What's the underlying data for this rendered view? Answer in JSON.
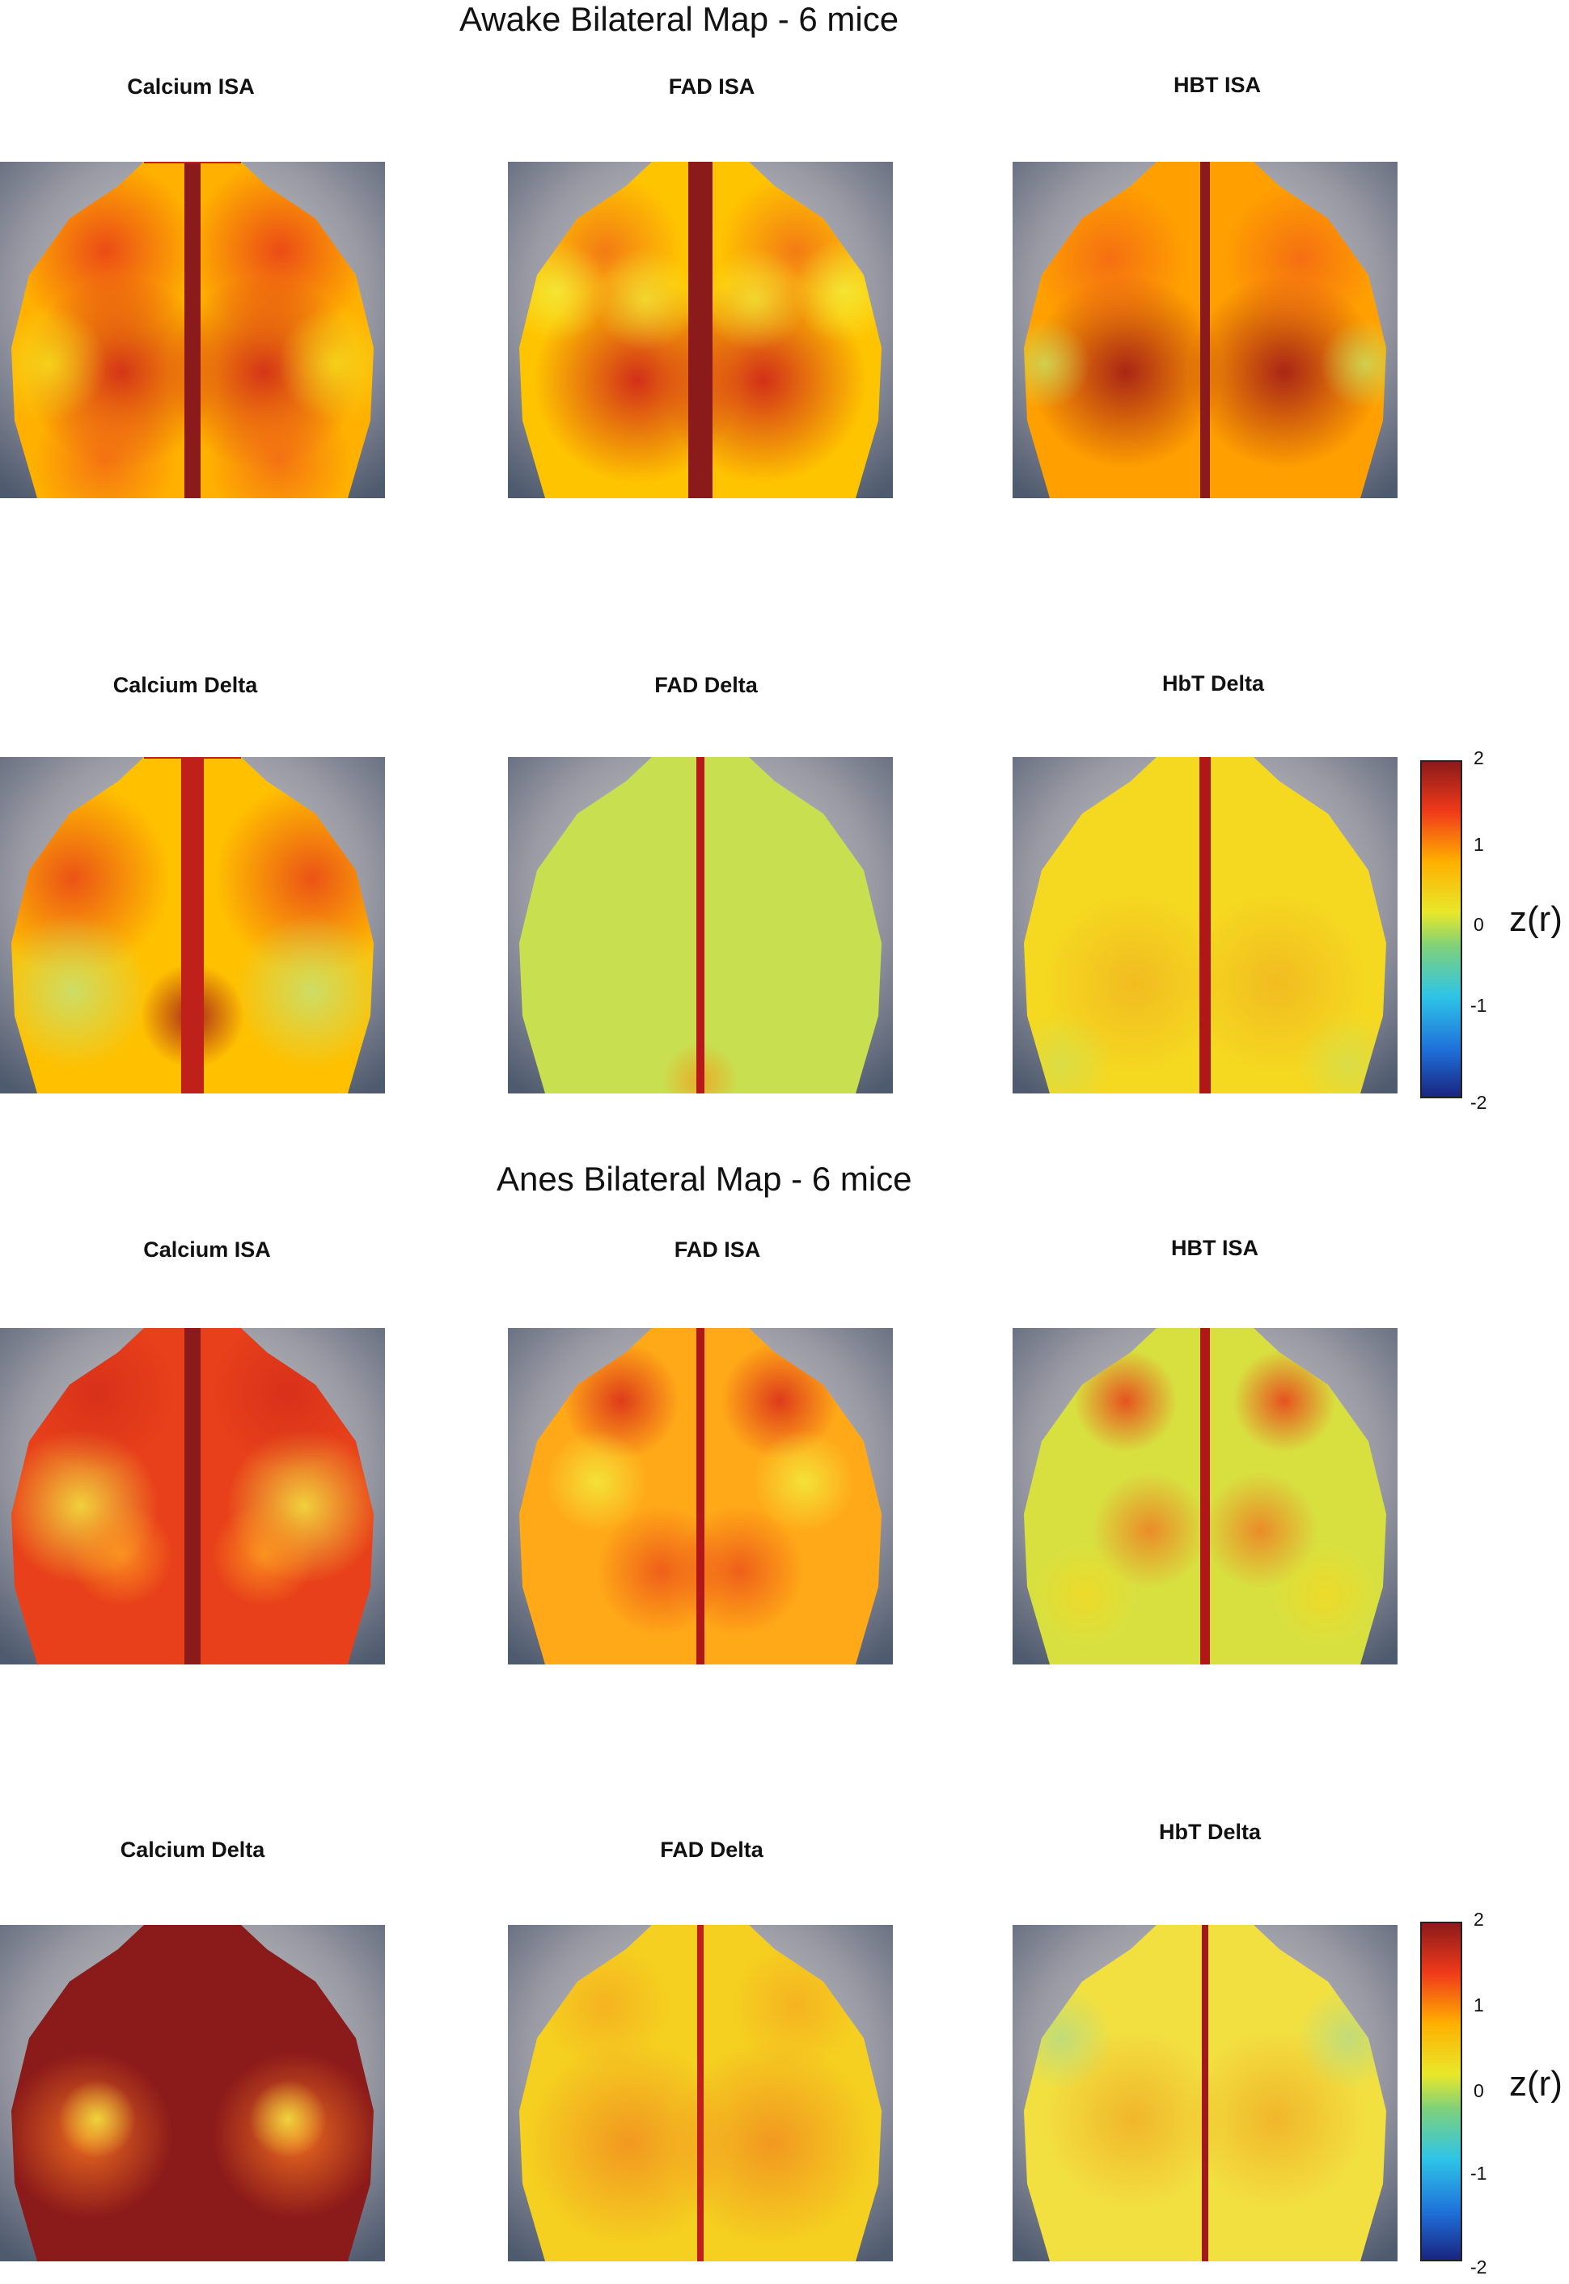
{
  "sections": [
    {
      "title": "Awake Bilateral Map - 6 mice",
      "panels": [
        {
          "title": "Calcium ISA",
          "icon": "brain-correlation-map"
        },
        {
          "title": "FAD ISA",
          "icon": "brain-correlation-map"
        },
        {
          "title": "HBT ISA",
          "icon": "brain-correlation-map"
        },
        {
          "title": "Calcium Delta",
          "icon": "brain-correlation-map"
        },
        {
          "title": "FAD Delta",
          "icon": "brain-correlation-map"
        },
        {
          "title": "HbT Delta",
          "icon": "brain-correlation-map"
        }
      ],
      "colorbar": {
        "ticks": [
          "2",
          "1",
          "0",
          "-1",
          "-2"
        ],
        "label": "z(r)"
      }
    },
    {
      "title": "Anes Bilateral Map - 6 mice",
      "panels": [
        {
          "title": "Calcium ISA",
          "icon": "brain-correlation-map"
        },
        {
          "title": "FAD ISA",
          "icon": "brain-correlation-map"
        },
        {
          "title": "HBT ISA",
          "icon": "brain-correlation-map"
        },
        {
          "title": "Calcium Delta",
          "icon": "brain-correlation-map"
        },
        {
          "title": "FAD Delta",
          "icon": "brain-correlation-map"
        },
        {
          "title": "HbT Delta",
          "icon": "brain-correlation-map"
        }
      ],
      "colorbar": {
        "ticks": [
          "2",
          "1",
          "0",
          "-1",
          "-2"
        ],
        "label": "z(r)"
      }
    }
  ],
  "colors": {
    "colormap": [
      "#1a237e",
      "#1e6fd9",
      "#2ec4e8",
      "#7fd17a",
      "#e8e82a",
      "#ffb000",
      "#f03a1a",
      "#8b1a1a"
    ]
  }
}
